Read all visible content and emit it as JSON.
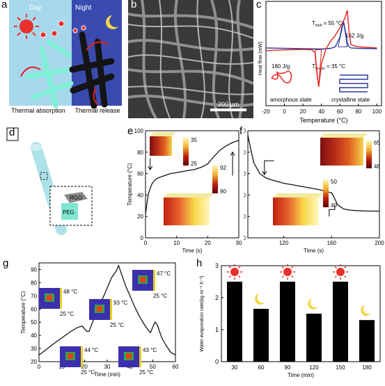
{
  "panels": {
    "a": {
      "label": "a",
      "day": "Day",
      "night": "Night",
      "cap_left": "Thermal absorption",
      "cap_right": "Thermal release",
      "colors": {
        "day_bg": "#a7d8ec",
        "night_bg": "#3a4bb0",
        "sun": "#e8302a",
        "moon": "#f4d54a",
        "fiber_day": "#7ff0d6",
        "fiber_night": "#141414",
        "arrow": "#e0201a"
      }
    },
    "b": {
      "label": "b",
      "scale": "200 μm"
    },
    "c": {
      "label": "c",
      "tmelt": "T",
      "tmelt_sub": "melt",
      "tmelt_val": " = 55 °C",
      "tfreeze": "T",
      "tfreeze_sub": "freeze",
      "tfreeze_val": " = 35 °C",
      "heat1": "162 J/g",
      "heat2": "180 J/g",
      "amorphous": "amorphous state",
      "crystalline": "crystalline state"
    },
    "d": {
      "label": "d",
      "rgo": "RGO",
      "peg": "PEG"
    },
    "e": {
      "label": "e",
      "bar_top": [
        "35",
        "25"
      ],
      "bar_bottom": [
        "92",
        "90"
      ]
    },
    "f": {
      "label": "f",
      "bar_top": [
        "65",
        "48"
      ],
      "bar_bottom": [
        "50",
        "40"
      ]
    },
    "g": {
      "label": "g",
      "insets": [
        "48 °C",
        "25 °C",
        "93 °C",
        "25 °C",
        "47 °C",
        "25 °C",
        "44 °C",
        "25 °C",
        "43 °C",
        "25 °C"
      ]
    },
    "h": {
      "label": "h"
    }
  },
  "chart_data": [
    {
      "id": "c",
      "type": "line",
      "xlabel": "Temperature (°C)",
      "ylabel": "Heat flow (mW)",
      "xlim": [
        -20,
        105
      ],
      "x_ticks": [
        -20,
        0,
        20,
        40,
        60,
        80,
        100
      ],
      "series": [
        {
          "color": "#2a3a9c",
          "x": [
            -20,
            0,
            20,
            40,
            50,
            55,
            60,
            62,
            64,
            66,
            68,
            70,
            72,
            80,
            100
          ],
          "y": [
            0.02,
            0.01,
            0.0,
            -0.01,
            0.01,
            0.05,
            0.3,
            0.55,
            0.7,
            0.45,
            0.15,
            0.05,
            0.02,
            0.01,
            0.0
          ]
        },
        {
          "color": "#e0201a",
          "x": [
            -20,
            0,
            20,
            30,
            33,
            35,
            37,
            40,
            45,
            50,
            55,
            60,
            65,
            68,
            70,
            72,
            80,
            100
          ],
          "y": [
            -0.05,
            -0.03,
            -0.02,
            -0.03,
            -0.1,
            -0.6,
            -1.0,
            -0.4,
            0.0,
            0.2,
            0.35,
            0.55,
            0.78,
            1.0,
            0.4,
            0.1,
            0.05,
            0.02
          ]
        }
      ]
    },
    {
      "id": "e",
      "type": "line",
      "xlabel": "Time (s)",
      "ylabel": "Temperature (°C)",
      "xlim": [
        0,
        30
      ],
      "ylim": [
        0,
        100
      ],
      "x_ticks": [
        0,
        10,
        20,
        30
      ],
      "y_ticks": [
        0,
        20,
        40,
        60,
        80,
        100
      ],
      "series": [
        {
          "x": [
            0,
            0.5,
            1,
            2,
            3,
            4,
            6,
            8,
            10,
            12,
            14,
            16,
            18,
            20,
            22,
            24,
            26,
            28,
            30
          ],
          "y": [
            22,
            33,
            42,
            50,
            54,
            56,
            58,
            60,
            61,
            62,
            63,
            64,
            66,
            69,
            76,
            82,
            86,
            89,
            91
          ]
        }
      ]
    },
    {
      "id": "f",
      "type": "line",
      "xlabel": "Time (s)",
      "ylabel": "Temperature (°C)",
      "xlim": [
        90,
        200
      ],
      "ylim": [
        0,
        100
      ],
      "x_ticks": [
        120,
        160,
        200
      ],
      "y_ticks": [
        0,
        20,
        40,
        60,
        80,
        100
      ],
      "series": [
        {
          "x": [
            90,
            92,
            95,
            100,
            105,
            110,
            120,
            130,
            140,
            150,
            160,
            162,
            165,
            170,
            175,
            180,
            190,
            200
          ],
          "y": [
            96,
            85,
            70,
            60,
            56,
            54,
            51,
            49,
            47,
            45,
            42,
            38,
            31,
            27,
            26,
            25.5,
            25,
            25
          ]
        }
      ]
    },
    {
      "id": "g",
      "type": "line",
      "xlabel": "Time (min)",
      "ylabel": "Temperature (°C)",
      "xlim": [
        0,
        60
      ],
      "ylim": [
        20,
        95
      ],
      "x_ticks": [
        0,
        10,
        20,
        30,
        40,
        50,
        60
      ],
      "y_ticks": [
        20,
        30,
        40,
        50,
        60,
        70,
        80,
        90
      ],
      "series": [
        {
          "x": [
            0,
            3,
            6,
            10,
            14,
            17,
            19,
            20,
            21,
            22,
            24,
            26,
            28,
            30,
            32,
            34,
            35,
            36,
            38,
            40,
            42,
            44,
            46,
            48,
            49,
            50,
            51,
            52,
            54,
            56,
            58,
            60
          ],
          "y": [
            25,
            29,
            33,
            38,
            43,
            46,
            47,
            45,
            43,
            43,
            52,
            60,
            68,
            76,
            84,
            89,
            93,
            88,
            78,
            70,
            62,
            55,
            49,
            44,
            42,
            46,
            50,
            48,
            38,
            32,
            27,
            25
          ]
        }
      ]
    },
    {
      "id": "h",
      "type": "bar",
      "xlabel": "Time (min)",
      "ylabel": "Water evaporation rate(kg·m⁻²·h⁻¹)",
      "ylim": [
        0,
        3
      ],
      "y_ticks": [
        0,
        1,
        2,
        3
      ],
      "categories": [
        "30",
        "60",
        "90",
        "120",
        "150",
        "180"
      ],
      "values": [
        2.5,
        1.65,
        2.5,
        1.5,
        2.5,
        1.3
      ],
      "icons": [
        "sun-icon",
        "moon-icon",
        "sun-icon",
        "moon-icon",
        "sun-icon",
        "moon-icon"
      ]
    }
  ]
}
